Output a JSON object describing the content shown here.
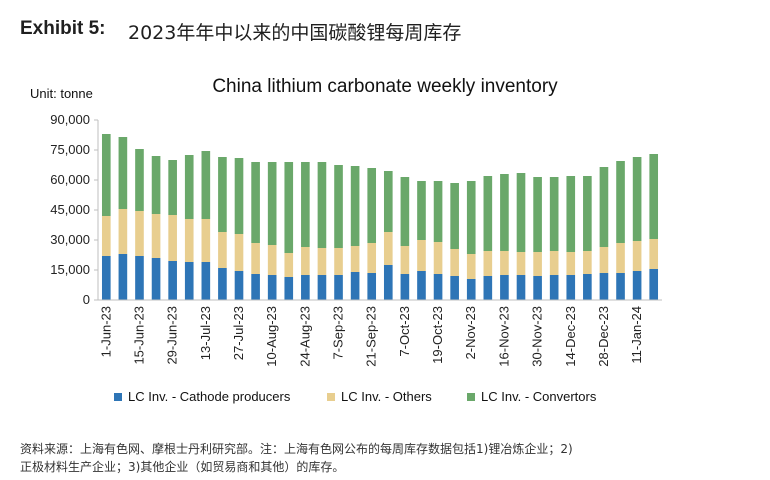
{
  "exhibit": {
    "label": "Exhibit 5:",
    "title": "2023年年中以来的中国碳酸锂每周库存"
  },
  "chart_data": {
    "type": "bar",
    "stacked": true,
    "title": "China lithium carbonate weekly inventory",
    "unit_label": "Unit: tonne",
    "ylim": [
      0,
      90000
    ],
    "yticks": [
      0,
      15000,
      30000,
      45000,
      60000,
      75000,
      90000
    ],
    "ytick_labels": [
      "0",
      "15,000",
      "30,000",
      "45,000",
      "60,000",
      "75,000",
      "90,000"
    ],
    "grid": false,
    "legend_position": "bottom",
    "categories": [
      "1-Jun-23",
      "8-Jun-23",
      "15-Jun-23",
      "22-Jun-23",
      "29-Jun-23",
      "6-Jul-23",
      "13-Jul-23",
      "20-Jul-23",
      "27-Jul-23",
      "3-Aug-23",
      "10-Aug-23",
      "17-Aug-23",
      "24-Aug-23",
      "31-Aug-23",
      "7-Sep-23",
      "14-Sep-23",
      "21-Sep-23",
      "28-Sep-23",
      "7-Oct-23",
      "12-Oct-23",
      "19-Oct-23",
      "26-Oct-23",
      "2-Nov-23",
      "9-Nov-23",
      "16-Nov-23",
      "23-Nov-23",
      "30-Nov-23",
      "7-Dec-23",
      "14-Dec-23",
      "21-Dec-23",
      "28-Dec-23",
      "4-Jan-24",
      "11-Jan-24",
      "18-Jan-24"
    ],
    "xtick_labels": [
      "1-Jun-23",
      "15-Jun-23",
      "29-Jun-23",
      "13-Jul-23",
      "27-Jul-23",
      "10-Aug-23",
      "24-Aug-23",
      "7-Sep-23",
      "21-Sep-23",
      "7-Oct-23",
      "19-Oct-23",
      "2-Nov-23",
      "16-Nov-23",
      "30-Nov-23",
      "14-Dec-23",
      "28-Dec-23",
      "11-Jan-24"
    ],
    "series": [
      {
        "name": "LC Inv. - Cathode producers",
        "color": "#2e75b6",
        "values": [
          22000,
          23000,
          22000,
          21000,
          19500,
          19000,
          19000,
          16000,
          14500,
          13000,
          12500,
          11500,
          12500,
          12500,
          12500,
          14000,
          13500,
          17500,
          13000,
          14500,
          13000,
          12000,
          10500,
          12000,
          12500,
          12500,
          12000,
          12500,
          12500,
          13000,
          13500,
          13500,
          14500,
          15500
        ]
      },
      {
        "name": "LC Inv. - Others",
        "color": "#e8ce8f",
        "values": [
          20000,
          22500,
          22500,
          22000,
          23000,
          21500,
          21500,
          18000,
          18500,
          15500,
          15000,
          12000,
          14000,
          13500,
          13500,
          13000,
          15000,
          16500,
          14000,
          15500,
          16000,
          13500,
          12500,
          12500,
          12000,
          11500,
          12000,
          12000,
          11500,
          11500,
          13000,
          15000,
          15000,
          15000
        ]
      },
      {
        "name": "LC Inv. - Convertors",
        "color": "#6aa86a",
        "values": [
          41000,
          36000,
          31000,
          29000,
          27500,
          32000,
          34000,
          37500,
          38000,
          40500,
          41500,
          45500,
          42500,
          43000,
          41500,
          40000,
          37500,
          30500,
          34500,
          29500,
          30500,
          33000,
          36500,
          37500,
          38500,
          39500,
          37500,
          37000,
          38000,
          37500,
          40000,
          41000,
          42000,
          42500
        ]
      }
    ]
  },
  "source_note": {
    "line1": "资料来源：上海有色网、摩根士丹利研究部。注：上海有色网公布的每周库存数据包括1)锂冶炼企业；2)",
    "line2": "正极材料生产企业；3)其他企业（如贸易商和其他）的库存。"
  }
}
